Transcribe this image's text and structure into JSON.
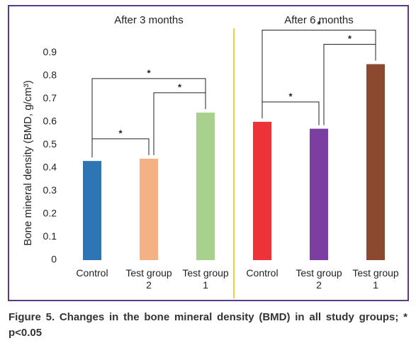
{
  "chart_data": {
    "type": "bar",
    "ylabel": "Bone mineral density (BMD, g/cm³)",
    "ylim": [
      0,
      0.95
    ],
    "yticks": [
      0,
      0.1,
      0.2,
      0.3,
      0.4,
      0.5,
      0.6,
      0.7,
      0.8,
      0.9
    ],
    "groups": [
      {
        "title": "After 3 months",
        "categories": [
          "Control",
          "Test group 2",
          "Test group 1"
        ],
        "values": [
          0.43,
          0.44,
          0.64
        ],
        "colors": [
          "#2e75b6",
          "#f4b183",
          "#a9d18e"
        ],
        "comparisons": [
          {
            "label": "*",
            "pair": [
              "Control",
              "Test group 2"
            ]
          },
          {
            "label": "*",
            "pair": [
              "Test group 2",
              "Test group 1"
            ]
          },
          {
            "label": "*",
            "pair": [
              "Control",
              "Test group 1"
            ]
          }
        ]
      },
      {
        "title": "After 6 months",
        "categories": [
          "Control",
          "Test group 2",
          "Test group 1"
        ],
        "values": [
          0.6,
          0.57,
          0.85
        ],
        "colors": [
          "#ee3338",
          "#7a3fa0",
          "#8b4a2f"
        ],
        "comparisons": [
          {
            "label": "*",
            "pair": [
              "Control",
              "Test group 2"
            ]
          },
          {
            "label": "*",
            "pair": [
              "Test group 2",
              "Test group 1"
            ]
          },
          {
            "label": "*",
            "pair": [
              "Control",
              "Test group 1"
            ]
          }
        ]
      }
    ]
  },
  "caption": "Figure 5. Changes in the bone mineral density (BMD) in all study groups; * p<0.05"
}
